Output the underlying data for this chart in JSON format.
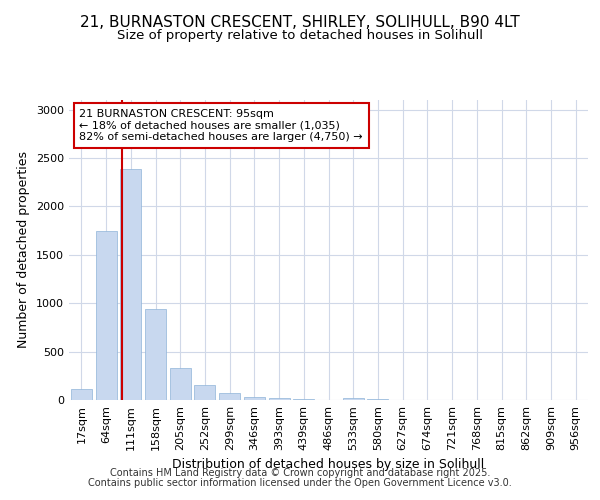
{
  "title_line1": "21, BURNASTON CRESCENT, SHIRLEY, SOLIHULL, B90 4LT",
  "title_line2": "Size of property relative to detached houses in Solihull",
  "xlabel": "Distribution of detached houses by size in Solihull",
  "ylabel": "Number of detached properties",
  "categories": [
    "17sqm",
    "64sqm",
    "111sqm",
    "158sqm",
    "205sqm",
    "252sqm",
    "299sqm",
    "346sqm",
    "393sqm",
    "439sqm",
    "486sqm",
    "533sqm",
    "580sqm",
    "627sqm",
    "674sqm",
    "721sqm",
    "768sqm",
    "815sqm",
    "862sqm",
    "909sqm",
    "956sqm"
  ],
  "values": [
    110,
    1750,
    2390,
    940,
    335,
    150,
    75,
    35,
    20,
    10,
    5,
    25,
    15,
    0,
    0,
    0,
    0,
    0,
    0,
    0,
    0
  ],
  "bar_color": "#c8d8ef",
  "bar_edge_color": "#8fb4d9",
  "annotation_box_text": "21 BURNASTON CRESCENT: 95sqm\n← 18% of detached houses are smaller (1,035)\n82% of semi-detached houses are larger (4,750) →",
  "annotation_box_color": "#cc0000",
  "red_line_x": 1.65,
  "ylim": [
    0,
    3100
  ],
  "yticks": [
    0,
    500,
    1000,
    1500,
    2000,
    2500,
    3000
  ],
  "background_color": "#ffffff",
  "plot_background": "#ffffff",
  "footer_line1": "Contains HM Land Registry data © Crown copyright and database right 2025.",
  "footer_line2": "Contains public sector information licensed under the Open Government Licence v3.0.",
  "grid_color": "#d0d8e8",
  "title_fontsize": 11,
  "subtitle_fontsize": 9.5,
  "axis_label_fontsize": 9,
  "tick_fontsize": 8,
  "annotation_fontsize": 8,
  "footer_fontsize": 7
}
